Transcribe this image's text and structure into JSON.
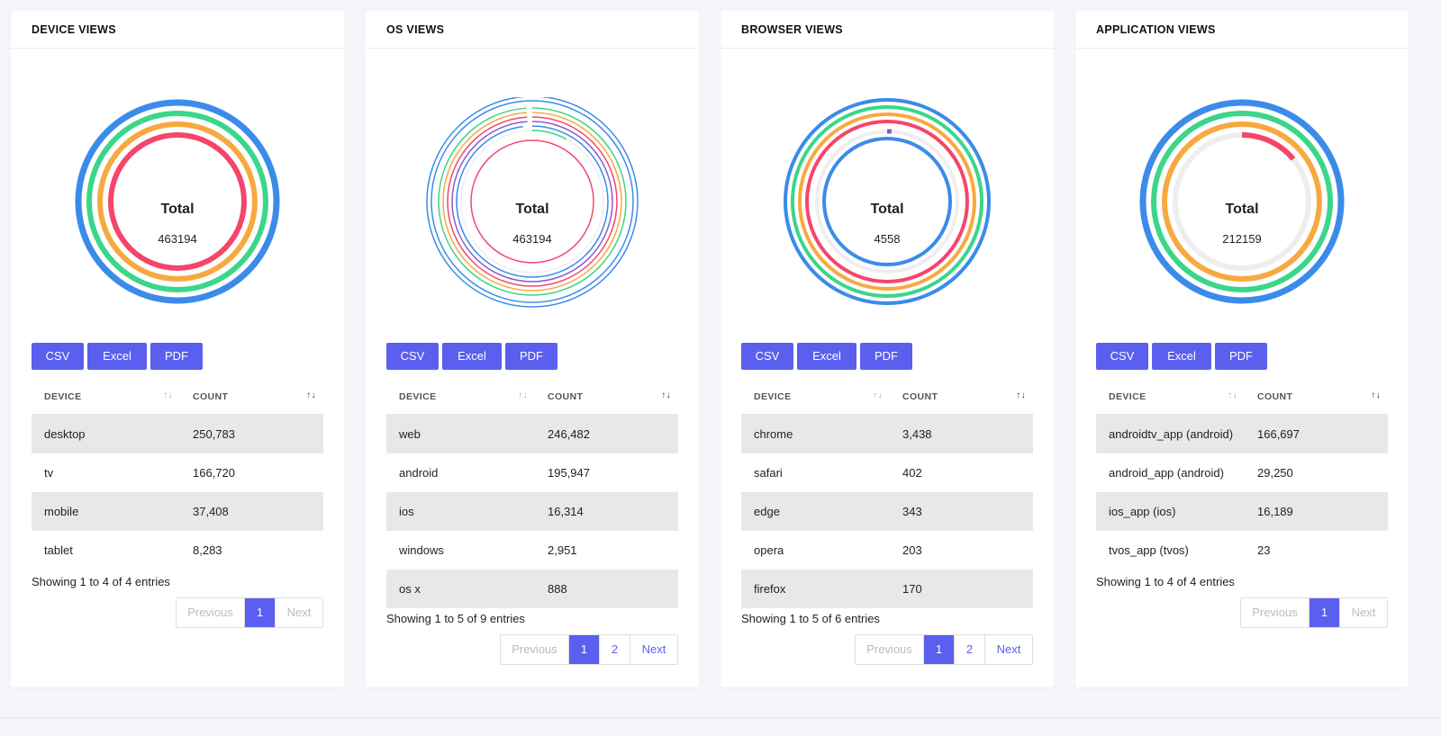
{
  "colors": {
    "accent": "#5b5fef",
    "ring_blue": "#3b8bea",
    "ring_green": "#3ad68a",
    "ring_orange": "#f7a940",
    "ring_red": "#f4466a",
    "ring_purple": "#8a5cc9",
    "ring_track": "#eeeeee"
  },
  "common": {
    "total_label": "Total",
    "csv_label": "CSV",
    "excel_label": "Excel",
    "pdf_label": "PDF",
    "col_device": "DEVICE",
    "col_count": "COUNT",
    "prev_label": "Previous",
    "next_label": "Next",
    "sort_icon": "↑↓"
  },
  "panels": [
    {
      "title": "DEVICE VIEWS",
      "total": "463194",
      "rows": [
        {
          "name": "desktop",
          "count": "250,783"
        },
        {
          "name": "tv",
          "count": "166,720"
        },
        {
          "name": "mobile",
          "count": "37,408"
        },
        {
          "name": "tablet",
          "count": "8,283"
        }
      ],
      "info": "Showing 1 to 4 of 4 entries",
      "pages": [
        "1"
      ],
      "current_page": "1",
      "next_enabled": false
    },
    {
      "title": "OS VIEWS",
      "total": "463194",
      "rows": [
        {
          "name": "web",
          "count": "246,482"
        },
        {
          "name": "android",
          "count": "195,947"
        },
        {
          "name": "ios",
          "count": "16,314"
        },
        {
          "name": "windows",
          "count": "2,951"
        },
        {
          "name": "os x",
          "count": "888"
        }
      ],
      "info": "Showing 1 to 5 of 9 entries",
      "pages": [
        "1",
        "2"
      ],
      "current_page": "1",
      "next_enabled": true
    },
    {
      "title": "BROWSER VIEWS",
      "total": "4558",
      "rows": [
        {
          "name": "chrome",
          "count": "3,438"
        },
        {
          "name": "safari",
          "count": "402"
        },
        {
          "name": "edge",
          "count": "343"
        },
        {
          "name": "opera",
          "count": "203"
        },
        {
          "name": "firefox",
          "count": "170"
        }
      ],
      "info": "Showing 1 to 5 of 6 entries",
      "pages": [
        "1",
        "2"
      ],
      "current_page": "1",
      "next_enabled": true
    },
    {
      "title": "APPLICATION VIEWS",
      "total": "212159",
      "rows": [
        {
          "name": "androidtv_app (android)",
          "count": "166,697"
        },
        {
          "name": "android_app (android)",
          "count": "29,250"
        },
        {
          "name": "ios_app (ios)",
          "count": "16,189"
        },
        {
          "name": "tvos_app (tvos)",
          "count": "23"
        }
      ],
      "info": "Showing 1 to 4 of 4 entries",
      "pages": [
        "1"
      ],
      "current_page": "1",
      "next_enabled": false
    }
  ],
  "chart_data": [
    {
      "type": "radial-bar",
      "rings": [
        {
          "color": "#3b8bea",
          "fraction": 1.0
        },
        {
          "color": "#3ad68a",
          "fraction": 1.0
        },
        {
          "color": "#f7a940",
          "fraction": 1.0
        },
        {
          "color": "#f4466a",
          "fraction": 1.0
        }
      ]
    },
    {
      "type": "radial-bar",
      "rings": [
        {
          "color": "#3b8bea",
          "fraction": 1.0
        },
        {
          "color": "#3b8bea",
          "fraction": 1.0
        },
        {
          "color": "#3ad68a",
          "fraction": 0.99
        },
        {
          "color": "#f7a940",
          "fraction": 0.99
        },
        {
          "color": "#f4466a",
          "fraction": 0.99
        },
        {
          "color": "#8a5cc9",
          "fraction": 0.99
        },
        {
          "color": "#3b8bea",
          "fraction": 0.98
        },
        {
          "color": "#3ad68a",
          "fraction": 0.08
        },
        {
          "color": "#f4466a",
          "fraction": 1.0
        }
      ]
    },
    {
      "type": "radial-bar",
      "rings": [
        {
          "color": "#3b8bea",
          "fraction": 1.0
        },
        {
          "color": "#3ad68a",
          "fraction": 1.0
        },
        {
          "color": "#f7a940",
          "fraction": 1.0
        },
        {
          "color": "#f4466a",
          "fraction": 1.0
        },
        {
          "color": "#8a5cc9",
          "fraction": 0.01
        },
        {
          "color": "#3b8bea",
          "fraction": 1.0
        }
      ]
    },
    {
      "type": "radial-bar",
      "rings": [
        {
          "color": "#3b8bea",
          "fraction": 1.0
        },
        {
          "color": "#3ad68a",
          "fraction": 1.0
        },
        {
          "color": "#f7a940",
          "fraction": 1.0
        },
        {
          "color": "#f4466a",
          "fraction": 0.14
        }
      ]
    }
  ]
}
